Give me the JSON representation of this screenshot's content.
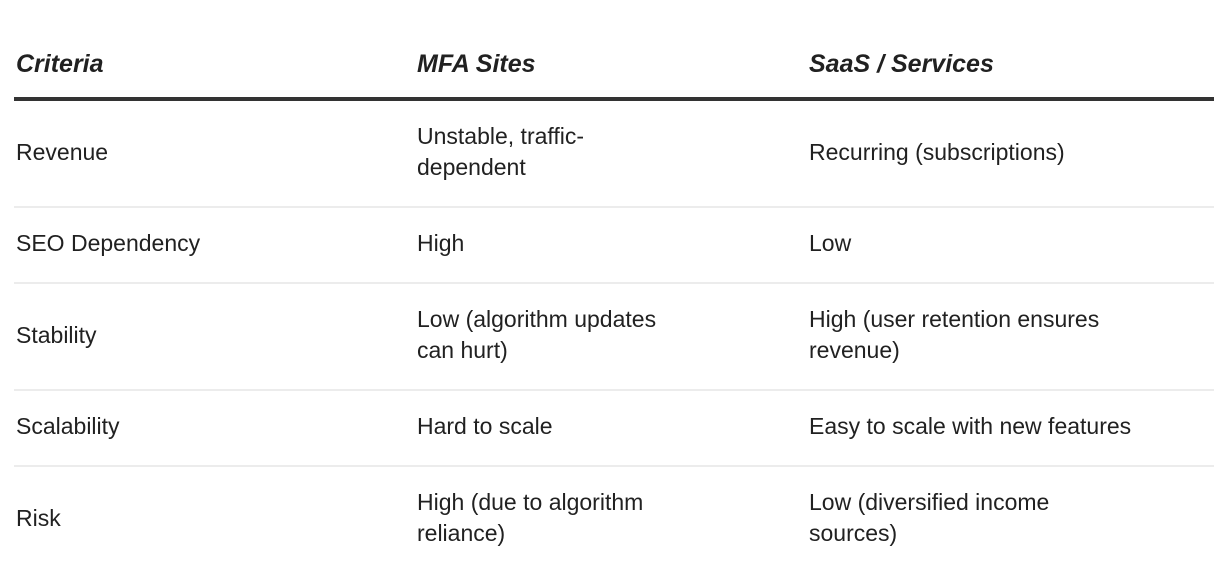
{
  "table": {
    "headers": [
      {
        "id": "criteria",
        "label": "Criteria"
      },
      {
        "id": "mfa",
        "label": "MFA Sites"
      },
      {
        "id": "saas",
        "label": "SaaS / Services"
      }
    ],
    "rows": [
      {
        "criteria": "Revenue",
        "mfa": "Unstable, traffic-\ndependent",
        "saas": "Recurring (subscriptions)"
      },
      {
        "criteria": "SEO Dependency",
        "mfa": "High",
        "saas": "Low"
      },
      {
        "criteria": "Stability",
        "mfa": "Low (algorithm updates\ncan hurt)",
        "saas": "High (user retention ensures\nrevenue)"
      },
      {
        "criteria": "Scalability",
        "mfa": "Hard to scale",
        "saas": "Easy to scale with new features"
      },
      {
        "criteria": "Risk",
        "mfa": "High (due to algorithm\nreliance)",
        "saas": "Low (diversified income\nsources)"
      }
    ],
    "colors": {
      "text": "#212121",
      "header_rule": "#333333",
      "row_divider": "#ececec",
      "background": "#ffffff"
    }
  }
}
